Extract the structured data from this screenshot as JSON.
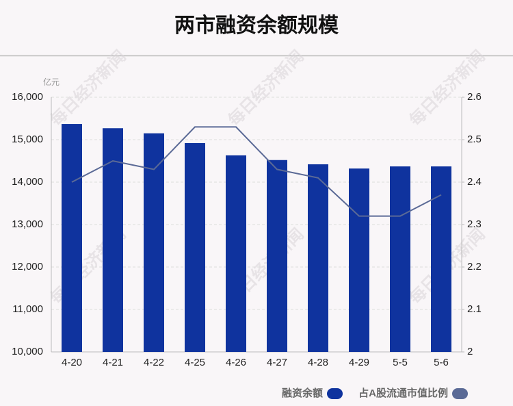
{
  "chart_data": {
    "type": "bar",
    "title": "两市融资余额规模",
    "y_unit": "亿元",
    "watermark": "每日经济新闻",
    "categories": [
      "4-20",
      "4-21",
      "4-22",
      "4-25",
      "4-26",
      "4-27",
      "4-28",
      "4-29",
      "5-5",
      "5-6"
    ],
    "series": [
      {
        "name": "融资余额",
        "type": "bar",
        "color": "#0f339e",
        "values": [
          15370,
          15270,
          15150,
          14920,
          14630,
          14520,
          14420,
          14320,
          14370,
          14370
        ]
      },
      {
        "name": "占A股流通市值比例",
        "type": "line",
        "axis": "y2",
        "color": "#5b6a96",
        "values": [
          2.4,
          2.45,
          2.43,
          2.53,
          2.53,
          2.43,
          2.41,
          2.32,
          2.32,
          2.37
        ]
      }
    ],
    "ylim": [
      10000,
      16000
    ],
    "yticks": [
      {
        "value": 10000,
        "label": "10,000"
      },
      {
        "value": 11000,
        "label": "11,000"
      },
      {
        "value": 12000,
        "label": "12,000"
      },
      {
        "value": 13000,
        "label": "13,000"
      },
      {
        "value": 14000,
        "label": "14,000"
      },
      {
        "value": 15000,
        "label": "15,000"
      },
      {
        "value": 16000,
        "label": "16,000"
      }
    ],
    "y2lim": [
      2,
      2.6
    ],
    "y2ticks": [
      2,
      2.1,
      2.2,
      2.3,
      2.4,
      2.5,
      2.6
    ],
    "grid": true
  }
}
